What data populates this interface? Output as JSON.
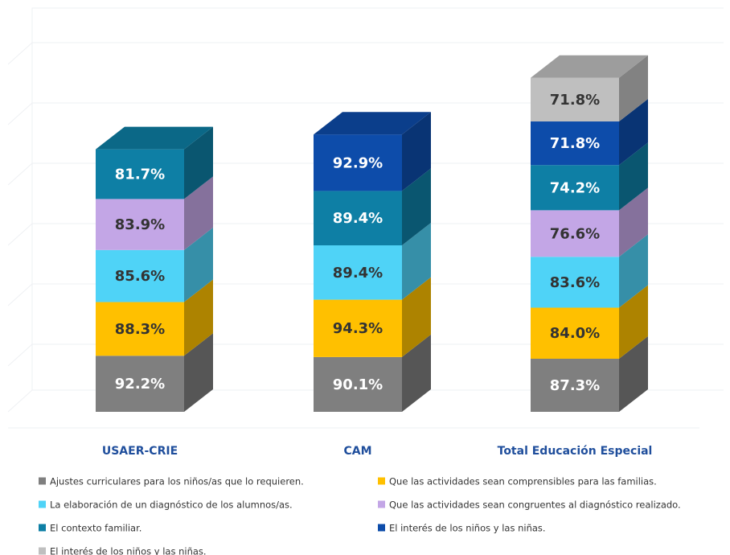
{
  "chart_data": {
    "type": "bar3d-stacked",
    "categories": [
      "USAER-CRIE",
      "CAM",
      "Total Educación Especial"
    ],
    "series": [
      {
        "name": "Ajustes curriculares para los niños/as que lo requieren.",
        "color": "#7f7f7f",
        "values": [
          92.2,
          90.1,
          87.3
        ],
        "value_labels": [
          "92.2%",
          "90.1%",
          "87.3%"
        ]
      },
      {
        "name": "Que las actividades sean comprensibles para las familias.",
        "color": "#ffc000",
        "values": [
          88.3,
          94.3,
          84.0
        ],
        "value_labels": [
          "88.3%",
          "94.3%",
          "84.0%"
        ]
      },
      {
        "name": "La elaboración de un diagnóstico de los alumnos/as.",
        "color": "#4fd3f7",
        "values": [
          85.6,
          89.4,
          83.6
        ],
        "value_labels": [
          "85.6%",
          "89.4%",
          "83.6%"
        ]
      },
      {
        "name": "Que las actividades sean congruentes al diagnóstico realizado.",
        "color": "#c3a6e6",
        "values": [
          83.9,
          null,
          76.6
        ],
        "value_labels": [
          "83.9%",
          null,
          "76.6%"
        ]
      },
      {
        "name": "El contexto familiar.",
        "color": "#0e7fa5",
        "values": [
          81.7,
          89.4,
          74.2
        ],
        "value_labels": [
          "81.7%",
          "89.4%",
          "74.2%"
        ]
      },
      {
        "name": "El interés de los niños y las niñas.",
        "color": "#0d4caa",
        "values": [
          null,
          92.9,
          71.8
        ],
        "value_labels": [
          null,
          "92.9%",
          "71.8%"
        ]
      },
      {
        "name": "El interés de los niños y las niñas.",
        "color": "#bfbfbf",
        "values": [
          null,
          null,
          71.8
        ],
        "value_labels": [
          null,
          null,
          "71.8%"
        ]
      }
    ]
  }
}
